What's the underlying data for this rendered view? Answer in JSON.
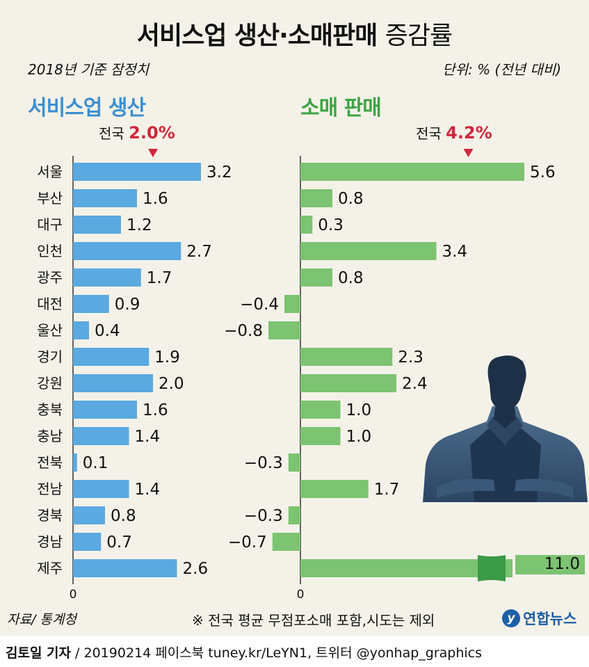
{
  "header": {
    "title_bold": "서비스업 생산·소매판매",
    "title_light": "증감률",
    "subtitle_left": "2018년 기준 잠정치",
    "subtitle_right": "단위: % (전년 대비)"
  },
  "panels": {
    "services_title": "서비스업 생산",
    "retail_title": "소매 판매",
    "national_label": "전국",
    "services_national": "2.0%",
    "retail_national": "4.2%"
  },
  "chart_data": {
    "type": "bar",
    "orientation": "horizontal",
    "title": "서비스업 생산·소매판매 증감률",
    "unit": "단위: % (전년 대비)",
    "categories": [
      "서울",
      "부산",
      "대구",
      "인천",
      "광주",
      "대전",
      "울산",
      "경기",
      "강원",
      "충북",
      "충남",
      "전북",
      "전남",
      "경북",
      "경남",
      "제주"
    ],
    "series": [
      {
        "name": "서비스업 생산",
        "color": "#5aa9e0",
        "national": 2.0,
        "values": [
          3.2,
          1.6,
          1.2,
          2.7,
          1.7,
          0.9,
          0.4,
          1.9,
          2.0,
          1.6,
          1.4,
          0.1,
          1.4,
          0.8,
          0.7,
          2.6
        ],
        "labels": [
          "3.2",
          "1.6",
          "1.2",
          "2.7",
          "1.7",
          "0.9",
          "0.4",
          "1.9",
          "2.0",
          "1.6",
          "1.4",
          "0.1",
          "1.4",
          "0.8",
          "0.7",
          "2.6"
        ],
        "zero_label": "0"
      },
      {
        "name": "소매 판매",
        "color": "#7cc372",
        "national": 4.2,
        "values": [
          5.6,
          0.8,
          0.3,
          3.4,
          0.8,
          -0.4,
          -0.8,
          2.3,
          2.4,
          1.0,
          1.0,
          -0.3,
          1.7,
          -0.3,
          -0.7,
          11.0
        ],
        "labels": [
          "5.6",
          "0.8",
          "0.3",
          "3.4",
          "0.8",
          "−0.4",
          "−0.8",
          "2.3",
          "2.4",
          "1.0",
          "1.0",
          "−0.3",
          "1.7",
          "−0.3",
          "−0.7",
          "11.0"
        ],
        "zero_label": "0"
      }
    ],
    "xlabel": "",
    "ylabel": ""
  },
  "footer": {
    "source": "자료/ 통계청",
    "note": "※ 전국 평균 무점포소매 포함,시도는 제외",
    "logo_text": "연합뉴스",
    "reporter": "김토일 기자",
    "credits": " / 20190214 페이스북 tuney.kr/LeYN1, 트위터 @yonhap_graphics"
  }
}
